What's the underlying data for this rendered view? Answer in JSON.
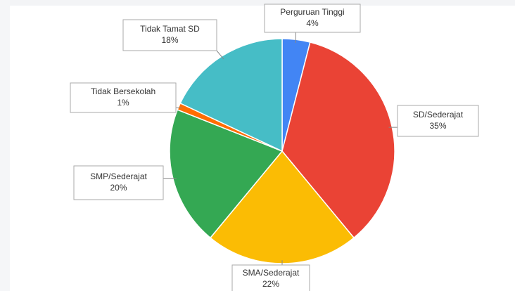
{
  "chart_data": {
    "type": "pie",
    "categories": [
      "Perguruan Tinggi",
      "SD/Sederajat",
      "SMA/Sederajat",
      "SMP/Sederajat",
      "Tidak Bersekolah",
      "Tidak Tamat SD"
    ],
    "values": [
      4,
      35,
      22,
      20,
      1,
      18
    ],
    "value_labels": [
      "4%",
      "35%",
      "22%",
      "20%",
      "1%",
      "18%"
    ],
    "colors": [
      "#4285f4",
      "#ea4335",
      "#fbbc04",
      "#34a853",
      "#ff6d01",
      "#46bdc6"
    ]
  }
}
